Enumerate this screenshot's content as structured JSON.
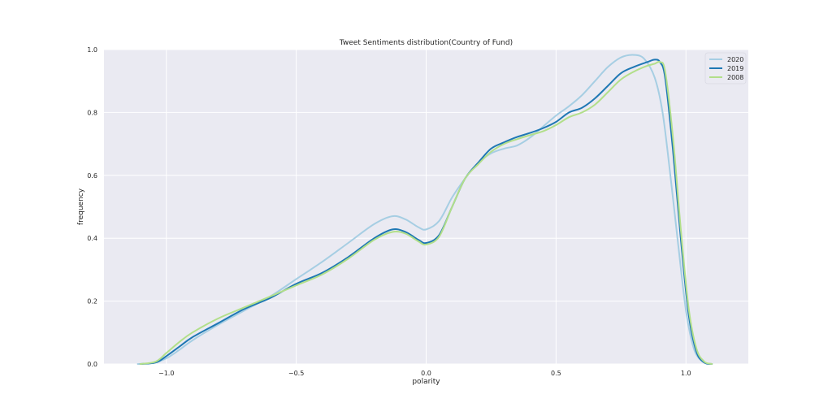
{
  "chart_data": {
    "type": "line",
    "title": "Tweet Sentiments distribution(Country of Fund)",
    "xlabel": "polarity",
    "ylabel": "frequency",
    "xlim": [
      -1.24,
      1.24
    ],
    "ylim": [
      0.0,
      1.0
    ],
    "xticks": [
      -1.0,
      -0.5,
      0.0,
      0.5,
      1.0
    ],
    "xtick_labels": [
      "−1.0",
      "−0.5",
      "0.0",
      "0.5",
      "1.0"
    ],
    "yticks": [
      0.0,
      0.2,
      0.4,
      0.6,
      0.8,
      1.0
    ],
    "ytick_labels": [
      "0.0",
      "0.2",
      "0.4",
      "0.6",
      "0.8",
      "1.0"
    ],
    "grid": true,
    "legend_position": "top-right",
    "series": [
      {
        "name": "2020",
        "color": "#a6cee3",
        "x": [
          -1.11,
          -1.05,
          -1.0,
          -0.95,
          -0.9,
          -0.8,
          -0.7,
          -0.6,
          -0.5,
          -0.4,
          -0.3,
          -0.2,
          -0.13,
          -0.08,
          -0.03,
          0.0,
          0.05,
          0.1,
          0.15,
          0.2,
          0.25,
          0.3,
          0.35,
          0.4,
          0.45,
          0.5,
          0.55,
          0.6,
          0.65,
          0.7,
          0.75,
          0.8,
          0.84,
          0.88,
          0.91,
          0.94,
          0.97,
          1.0,
          1.03,
          1.06,
          1.09
        ],
        "values": [
          0.0,
          0.003,
          0.018,
          0.045,
          0.075,
          0.125,
          0.17,
          0.215,
          0.27,
          0.325,
          0.385,
          0.445,
          0.47,
          0.46,
          0.435,
          0.428,
          0.455,
          0.53,
          0.59,
          0.64,
          0.67,
          0.685,
          0.695,
          0.72,
          0.755,
          0.79,
          0.82,
          0.855,
          0.9,
          0.945,
          0.975,
          0.983,
          0.97,
          0.91,
          0.8,
          0.6,
          0.38,
          0.17,
          0.05,
          0.01,
          0.0
        ]
      },
      {
        "name": "2019",
        "color": "#1f78b4",
        "x": [
          -1.1,
          -1.04,
          -1.0,
          -0.95,
          -0.9,
          -0.8,
          -0.7,
          -0.6,
          -0.5,
          -0.4,
          -0.3,
          -0.2,
          -0.13,
          -0.08,
          -0.03,
          0.0,
          0.05,
          0.1,
          0.15,
          0.2,
          0.25,
          0.3,
          0.35,
          0.4,
          0.45,
          0.5,
          0.55,
          0.6,
          0.65,
          0.7,
          0.75,
          0.8,
          0.85,
          0.88,
          0.9,
          0.92,
          0.95,
          0.98,
          1.01,
          1.04,
          1.07,
          1.1
        ],
        "values": [
          0.0,
          0.005,
          0.025,
          0.055,
          0.085,
          0.13,
          0.175,
          0.21,
          0.255,
          0.29,
          0.34,
          0.4,
          0.428,
          0.42,
          0.395,
          0.385,
          0.41,
          0.5,
          0.59,
          0.64,
          0.685,
          0.705,
          0.722,
          0.735,
          0.75,
          0.77,
          0.8,
          0.815,
          0.845,
          0.885,
          0.925,
          0.945,
          0.96,
          0.968,
          0.96,
          0.91,
          0.68,
          0.4,
          0.16,
          0.04,
          0.005,
          0.0
        ]
      },
      {
        "name": "2008",
        "color": "#b2df8a",
        "x": [
          -1.1,
          -1.04,
          -1.0,
          -0.95,
          -0.9,
          -0.8,
          -0.7,
          -0.6,
          -0.5,
          -0.4,
          -0.3,
          -0.2,
          -0.13,
          -0.08,
          -0.03,
          0.0,
          0.05,
          0.1,
          0.15,
          0.2,
          0.25,
          0.3,
          0.35,
          0.4,
          0.45,
          0.5,
          0.55,
          0.6,
          0.65,
          0.7,
          0.75,
          0.8,
          0.85,
          0.88,
          0.9,
          0.92,
          0.95,
          0.98,
          1.01,
          1.04,
          1.07,
          1.1
        ],
        "values": [
          0.0,
          0.008,
          0.035,
          0.07,
          0.1,
          0.145,
          0.18,
          0.215,
          0.25,
          0.285,
          0.335,
          0.395,
          0.42,
          0.415,
          0.39,
          0.38,
          0.405,
          0.5,
          0.59,
          0.635,
          0.675,
          0.7,
          0.715,
          0.728,
          0.74,
          0.76,
          0.785,
          0.8,
          0.825,
          0.865,
          0.905,
          0.93,
          0.948,
          0.955,
          0.96,
          0.93,
          0.72,
          0.43,
          0.18,
          0.05,
          0.008,
          0.0
        ]
      }
    ]
  }
}
